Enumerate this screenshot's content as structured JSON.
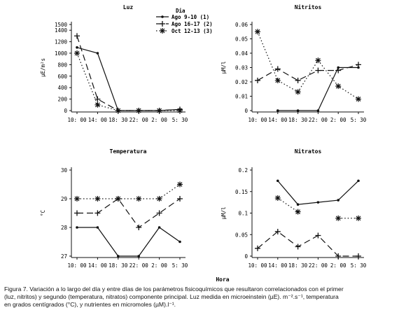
{
  "chart_data": [
    {
      "type": "line",
      "title": "Luz",
      "ylabel": "µE/m²s",
      "ylim": [
        0,
        1500
      ],
      "yticks": [
        "0",
        "200",
        "400",
        "600",
        "800",
        "1000",
        "1200",
        "1400",
        "1500"
      ],
      "categories": [
        "10: 00",
        "14: 00",
        "18: 30",
        "22: 00",
        "2: 00",
        "5: 30"
      ],
      "series": [
        {
          "name": "Ago 9-10  (1)",
          "values": [
            1100,
            1000,
            0,
            0,
            0,
            20
          ]
        },
        {
          "name": "Ago 16-17 (2)",
          "values": [
            1300,
            200,
            0,
            0,
            0,
            20
          ]
        },
        {
          "name": "Oct 12-13 (3)",
          "values": [
            1000,
            100,
            0,
            0,
            0,
            0
          ]
        }
      ],
      "legend": {
        "title": "Dia",
        "position": "top-right"
      }
    },
    {
      "type": "line",
      "title": "Nitritos",
      "ylabel": "µM/l",
      "ylim": [
        0,
        0.06
      ],
      "yticks": [
        "0",
        "0.01",
        "0.02",
        "0.03",
        "0.04",
        "0.05",
        "0.06"
      ],
      "categories": [
        "10: 00",
        "14: 00",
        "18: 30",
        "22: 00",
        "2: 00",
        "5: 30"
      ],
      "series": [
        {
          "values": [
            null,
            0,
            0,
            0,
            0.03,
            0.03
          ]
        },
        {
          "values": [
            0.021,
            0.029,
            0.021,
            0.028,
            0.028,
            0.032
          ]
        },
        {
          "values": [
            0.055,
            0.021,
            0.013,
            0.035,
            0.017,
            0.008
          ]
        }
      ]
    },
    {
      "type": "line",
      "title": "Temperatura",
      "ylabel": "°C",
      "ylim": [
        27,
        30
      ],
      "yticks": [
        "27",
        "28",
        "29",
        "30"
      ],
      "categories": [
        "10: 00",
        "14: 00",
        "18: 30",
        "22: 00",
        "2: 00",
        "5: 30"
      ],
      "series": [
        {
          "values": [
            28.0,
            28.0,
            27.0,
            27.0,
            28.0,
            27.5
          ]
        },
        {
          "values": [
            28.5,
            28.5,
            29.0,
            28.0,
            28.5,
            29.0
          ]
        },
        {
          "values": [
            29.0,
            29.0,
            29.0,
            29.0,
            29.0,
            29.5
          ]
        }
      ]
    },
    {
      "type": "line",
      "title": "Nitratos",
      "ylabel": "µM/l",
      "xlabel": "Hora",
      "ylim": [
        0,
        0.2
      ],
      "yticks": [
        "0",
        "0.05",
        "0.1",
        "0.15",
        "0.2"
      ],
      "categories": [
        "10: 00",
        "14: 00",
        "18: 30",
        "22: 00",
        "2: 00",
        "5: 30"
      ],
      "series": [
        {
          "values": [
            null,
            0.175,
            0.12,
            0.125,
            0.13,
            0.175
          ]
        },
        {
          "values": [
            0.018,
            0.057,
            0.022,
            0.048,
            0.0,
            0.0
          ]
        },
        {
          "values": [
            null,
            0.135,
            0.103,
            null,
            0.088,
            0.088
          ]
        }
      ]
    }
  ],
  "caption": {
    "line1": "Figura 7. Variación a lo largo del día y entre días de los parámetros fisicoquímicos que resultaron correlacionados con el primer",
    "line2": "(luz, nitritos) y segundo (temperatura, nitratos) componente principal. Luz medida en microeinstein (µE). m⁻².s⁻¹, temperatura",
    "line3": "en grados centígrados (°C), y nutrientes en micromoles (µM).l⁻¹."
  }
}
